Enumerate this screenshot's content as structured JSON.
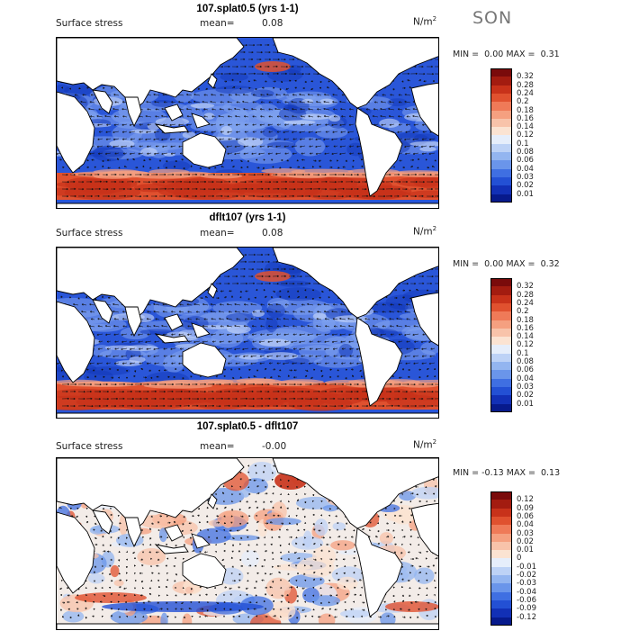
{
  "season": "SON",
  "colors": {
    "ocean_base": "#1f4fd6",
    "land": "#ffffff",
    "coast": "#000000",
    "arrow": "#111111"
  },
  "panels": [
    {
      "title": "107.splat0.5 (yrs 1-1)",
      "field_label": "Surface stress",
      "mean_label": "mean=",
      "mean_value": "0.08",
      "units": "N/m",
      "units_exp": "2",
      "min_label": "MIN =",
      "min_value": "0.00",
      "max_label": "MAX =",
      "max_value": "0.31",
      "kind": "abs",
      "colorbar": {
        "labels": [
          "0.32",
          "0.28",
          "0.24",
          "0.2",
          "0.18",
          "0.16",
          "0.14",
          "0.12",
          "0.1",
          "0.08",
          "0.06",
          "0.04",
          "0.03",
          "0.02",
          "0.01"
        ],
        "colors": [
          "#7a0b0b",
          "#a31c10",
          "#c8321a",
          "#e0512f",
          "#ef7a58",
          "#f5a080",
          "#f8c3aa",
          "#fbe3d2",
          "#e6eefb",
          "#bdd2f6",
          "#93b5f0",
          "#6a95ea",
          "#3f6fe2",
          "#2350d4",
          "#1230b6",
          "#071a8c"
        ]
      }
    },
    {
      "title": "dflt107 (yrs 1-1)",
      "field_label": "Surface stress",
      "mean_label": "mean=",
      "mean_value": "0.08",
      "units": "N/m",
      "units_exp": "2",
      "min_label": "MIN =",
      "min_value": "0.00",
      "max_label": "MAX =",
      "max_value": "0.32",
      "kind": "abs",
      "colorbar": {
        "labels": [
          "0.32",
          "0.28",
          "0.24",
          "0.2",
          "0.18",
          "0.16",
          "0.14",
          "0.12",
          "0.1",
          "0.08",
          "0.06",
          "0.04",
          "0.03",
          "0.02",
          "0.01"
        ],
        "colors": [
          "#7a0b0b",
          "#a31c10",
          "#c8321a",
          "#e0512f",
          "#ef7a58",
          "#f5a080",
          "#f8c3aa",
          "#fbe3d2",
          "#e6eefb",
          "#bdd2f6",
          "#93b5f0",
          "#6a95ea",
          "#3f6fe2",
          "#2350d4",
          "#1230b6",
          "#071a8c"
        ]
      }
    },
    {
      "title": "107.splat0.5 - dflt107",
      "field_label": "Surface stress",
      "mean_label": "mean=",
      "mean_value": "-0.00",
      "units": "N/m",
      "units_exp": "2",
      "min_label": "MIN =",
      "min_value": "-0.13",
      "max_label": "MAX =",
      "max_value": "0.13",
      "kind": "diff",
      "colorbar": {
        "labels": [
          "0.12",
          "0.09",
          "0.06",
          "0.04",
          "0.03",
          "0.02",
          "0.01",
          "0",
          "-0.01",
          "-0.02",
          "-0.03",
          "-0.04",
          "-0.06",
          "-0.09",
          "-0.12"
        ],
        "colors": [
          "#7a0b0b",
          "#a31c10",
          "#c8321a",
          "#e0512f",
          "#ef7a58",
          "#f5a080",
          "#f8c3aa",
          "#fbe3d2",
          "#e6eefb",
          "#bdd2f6",
          "#93b5f0",
          "#6a95ea",
          "#3f6fe2",
          "#2350d4",
          "#1230b6",
          "#071a8c"
        ]
      }
    }
  ]
}
